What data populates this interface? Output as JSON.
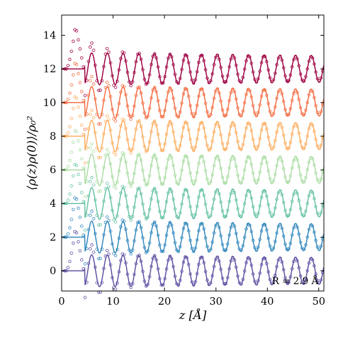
{
  "chart_data": {
    "type": "line",
    "title": "",
    "xlabel": "z [Å]",
    "ylabel": "⟨ρ(z)ρ(0)⟩/ρ₀²",
    "xlim": [
      0,
      51
    ],
    "ylim": [
      -1.2,
      15.2
    ],
    "xticks": [
      0,
      10,
      20,
      30,
      40,
      50
    ],
    "yticks": [
      0,
      2,
      4,
      6,
      8,
      10,
      12,
      14
    ],
    "annotation": "R = 2.9 Å",
    "grid": false,
    "legend": "none",
    "curve_model": {
      "period": 3.05,
      "first_peak_z": 5.85,
      "onset_z": 4.55,
      "first_amplitude": 0.95,
      "decay_length": 250,
      "marker_first_peak_z": 2.7,
      "marker_first_peak_height": 2.6,
      "marker_decay_length": 160
    },
    "series": [
      {
        "offset": 0,
        "color": "#5e4fa2",
        "kind": "markers+line"
      },
      {
        "offset": 2,
        "color": "#3288bd",
        "kind": "markers+line"
      },
      {
        "offset": 4,
        "color": "#66c2a5",
        "kind": "markers+line"
      },
      {
        "offset": 6,
        "color": "#abdda4",
        "kind": "markers+line"
      },
      {
        "offset": 8,
        "color": "#fdae61",
        "kind": "markers+line"
      },
      {
        "offset": 10,
        "color": "#f46d43",
        "kind": "markers+line"
      },
      {
        "offset": 12,
        "color": "#9e0142",
        "kind": "markers+line"
      }
    ]
  }
}
